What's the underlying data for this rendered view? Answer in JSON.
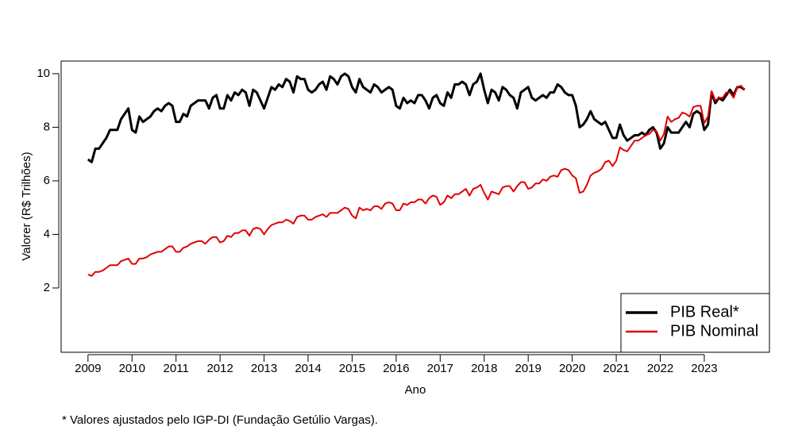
{
  "chart_data": {
    "type": "line",
    "x_label": "Ano",
    "y_label": "Valorer (R$ Trilhões)",
    "note": "* Valores ajustados pelo IGP-DI (Fundação Getúlio Vargas).",
    "xlim": [
      2008.39,
      2024.48
    ],
    "xticks": [
      2009,
      2010,
      2011,
      2012,
      2013,
      2014,
      2015,
      2016,
      2017,
      2018,
      2019,
      2020,
      2021,
      2022,
      2023
    ],
    "ylim": [
      -0.4,
      10.47
    ],
    "yticks": [
      2,
      4,
      6,
      8,
      10
    ],
    "legend": "bottom-right",
    "x": [
      2009,
      2009.083,
      2009.167,
      2009.25,
      2009.333,
      2009.417,
      2009.5,
      2009.583,
      2009.667,
      2009.75,
      2009.833,
      2009.917,
      2010,
      2010.083,
      2010.167,
      2010.25,
      2010.333,
      2010.417,
      2010.5,
      2010.583,
      2010.667,
      2010.75,
      2010.833,
      2010.917,
      2011,
      2011.083,
      2011.167,
      2011.25,
      2011.333,
      2011.417,
      2011.5,
      2011.583,
      2011.667,
      2011.75,
      2011.833,
      2011.917,
      2012,
      2012.083,
      2012.167,
      2012.25,
      2012.333,
      2012.417,
      2012.5,
      2012.583,
      2012.667,
      2012.75,
      2012.833,
      2012.917,
      2013,
      2013.083,
      2013.167,
      2013.25,
      2013.333,
      2013.417,
      2013.5,
      2013.583,
      2013.667,
      2013.75,
      2013.833,
      2013.917,
      2014,
      2014.083,
      2014.167,
      2014.25,
      2014.333,
      2014.417,
      2014.5,
      2014.583,
      2014.667,
      2014.75,
      2014.833,
      2014.917,
      2015,
      2015.083,
      2015.167,
      2015.25,
      2015.333,
      2015.417,
      2015.5,
      2015.583,
      2015.667,
      2015.75,
      2015.833,
      2015.917,
      2016,
      2016.083,
      2016.167,
      2016.25,
      2016.333,
      2016.417,
      2016.5,
      2016.583,
      2016.667,
      2016.75,
      2016.833,
      2016.917,
      2017,
      2017.083,
      2017.167,
      2017.25,
      2017.333,
      2017.417,
      2017.5,
      2017.583,
      2017.667,
      2017.75,
      2017.833,
      2017.917,
      2018,
      2018.083,
      2018.167,
      2018.25,
      2018.333,
      2018.417,
      2018.5,
      2018.583,
      2018.667,
      2018.75,
      2018.833,
      2018.917,
      2019,
      2019.083,
      2019.167,
      2019.25,
      2019.333,
      2019.417,
      2019.5,
      2019.583,
      2019.667,
      2019.75,
      2019.833,
      2019.917,
      2020,
      2020.083,
      2020.167,
      2020.25,
      2020.333,
      2020.417,
      2020.5,
      2020.583,
      2020.667,
      2020.75,
      2020.833,
      2020.917,
      2021,
      2021.083,
      2021.167,
      2021.25,
      2021.333,
      2021.417,
      2021.5,
      2021.583,
      2021.667,
      2021.75,
      2021.833,
      2021.917,
      2022,
      2022.083,
      2022.167,
      2022.25,
      2022.333,
      2022.417,
      2022.5,
      2022.583,
      2022.667,
      2022.75,
      2022.833,
      2022.917,
      2023,
      2023.083,
      2023.167,
      2023.25,
      2023.333,
      2023.417,
      2023.5,
      2023.583,
      2023.667,
      2023.75,
      2023.833,
      2023.917
    ],
    "series": [
      {
        "name": "PIB Real*",
        "color": "#000000",
        "width": 3,
        "values": [
          6.8,
          6.7,
          7.2,
          7.2,
          7.4,
          7.6,
          7.9,
          7.9,
          7.9,
          8.3,
          8.5,
          8.7,
          7.9,
          7.8,
          8.4,
          8.2,
          8.3,
          8.4,
          8.6,
          8.7,
          8.6,
          8.8,
          8.9,
          8.8,
          8.2,
          8.2,
          8.5,
          8.4,
          8.8,
          8.9,
          9.0,
          9.0,
          9.0,
          8.7,
          9.1,
          9.2,
          8.7,
          8.7,
          9.2,
          9.0,
          9.3,
          9.2,
          9.4,
          9.3,
          8.8,
          9.4,
          9.3,
          9.0,
          8.7,
          9.1,
          9.5,
          9.4,
          9.6,
          9.5,
          9.8,
          9.7,
          9.3,
          9.9,
          9.8,
          9.8,
          9.4,
          9.3,
          9.4,
          9.6,
          9.7,
          9.4,
          9.9,
          9.8,
          9.6,
          9.9,
          10.0,
          9.9,
          9.5,
          9.3,
          9.8,
          9.5,
          9.4,
          9.3,
          9.6,
          9.5,
          9.3,
          9.4,
          9.5,
          9.4,
          8.8,
          8.7,
          9.1,
          8.9,
          9.0,
          8.9,
          9.2,
          9.2,
          9.0,
          8.7,
          9.1,
          9.2,
          8.9,
          8.8,
          9.3,
          9.1,
          9.6,
          9.6,
          9.7,
          9.6,
          9.2,
          9.6,
          9.7,
          10.0,
          9.4,
          8.9,
          9.4,
          9.3,
          9.0,
          9.5,
          9.4,
          9.2,
          9.1,
          8.7,
          9.3,
          9.4,
          9.5,
          9.1,
          9.0,
          9.1,
          9.2,
          9.1,
          9.3,
          9.3,
          9.6,
          9.5,
          9.3,
          9.2,
          9.2,
          8.8,
          8.0,
          8.1,
          8.3,
          8.6,
          8.3,
          8.2,
          8.1,
          8.2,
          7.9,
          7.6,
          7.6,
          8.1,
          7.7,
          7.5,
          7.6,
          7.7,
          7.7,
          7.8,
          7.7,
          7.9,
          8.0,
          7.8,
          7.2,
          7.4,
          8.0,
          7.8,
          7.8,
          7.8,
          8.0,
          8.2,
          8.0,
          8.5,
          8.6,
          8.5,
          7.9,
          8.1,
          9.3,
          8.9,
          9.1,
          9.0,
          9.2,
          9.4,
          9.2,
          9.5,
          9.5,
          9.4
        ]
      },
      {
        "name": "PIB Nominal",
        "color": "#e00000",
        "width": 2,
        "values": [
          2.5,
          2.45,
          2.6,
          2.6,
          2.65,
          2.75,
          2.85,
          2.85,
          2.85,
          3.0,
          3.05,
          3.1,
          2.9,
          2.9,
          3.1,
          3.1,
          3.15,
          3.25,
          3.3,
          3.35,
          3.35,
          3.45,
          3.55,
          3.55,
          3.35,
          3.35,
          3.5,
          3.55,
          3.65,
          3.7,
          3.75,
          3.75,
          3.65,
          3.8,
          3.9,
          3.9,
          3.7,
          3.75,
          3.95,
          3.9,
          4.05,
          4.05,
          4.15,
          4.15,
          3.95,
          4.2,
          4.25,
          4.2,
          4.0,
          4.2,
          4.35,
          4.4,
          4.45,
          4.45,
          4.55,
          4.5,
          4.4,
          4.65,
          4.7,
          4.7,
          4.55,
          4.55,
          4.65,
          4.7,
          4.75,
          4.65,
          4.8,
          4.8,
          4.8,
          4.9,
          5.0,
          4.95,
          4.7,
          4.6,
          5.0,
          4.9,
          4.95,
          4.9,
          5.05,
          5.05,
          4.95,
          5.15,
          5.2,
          5.15,
          4.9,
          4.9,
          5.15,
          5.1,
          5.2,
          5.2,
          5.3,
          5.3,
          5.15,
          5.35,
          5.45,
          5.4,
          5.1,
          5.2,
          5.45,
          5.35,
          5.5,
          5.5,
          5.6,
          5.7,
          5.45,
          5.7,
          5.75,
          5.85,
          5.55,
          5.3,
          5.6,
          5.55,
          5.5,
          5.75,
          5.8,
          5.8,
          5.6,
          5.8,
          5.95,
          5.95,
          5.7,
          5.75,
          5.9,
          5.9,
          6.05,
          6.0,
          6.15,
          6.2,
          6.15,
          6.4,
          6.45,
          6.4,
          6.2,
          6.1,
          5.55,
          5.6,
          5.85,
          6.2,
          6.3,
          6.35,
          6.45,
          6.7,
          6.75,
          6.55,
          6.75,
          7.25,
          7.15,
          7.1,
          7.3,
          7.5,
          7.5,
          7.6,
          7.7,
          7.75,
          7.9,
          7.85,
          7.5,
          7.75,
          8.4,
          8.2,
          8.3,
          8.35,
          8.55,
          8.5,
          8.4,
          8.75,
          8.8,
          8.8,
          8.15,
          8.4,
          9.35,
          9.0,
          9.1,
          9.1,
          9.3,
          9.3,
          9.1,
          9.5,
          9.55,
          9.4
        ]
      }
    ]
  }
}
